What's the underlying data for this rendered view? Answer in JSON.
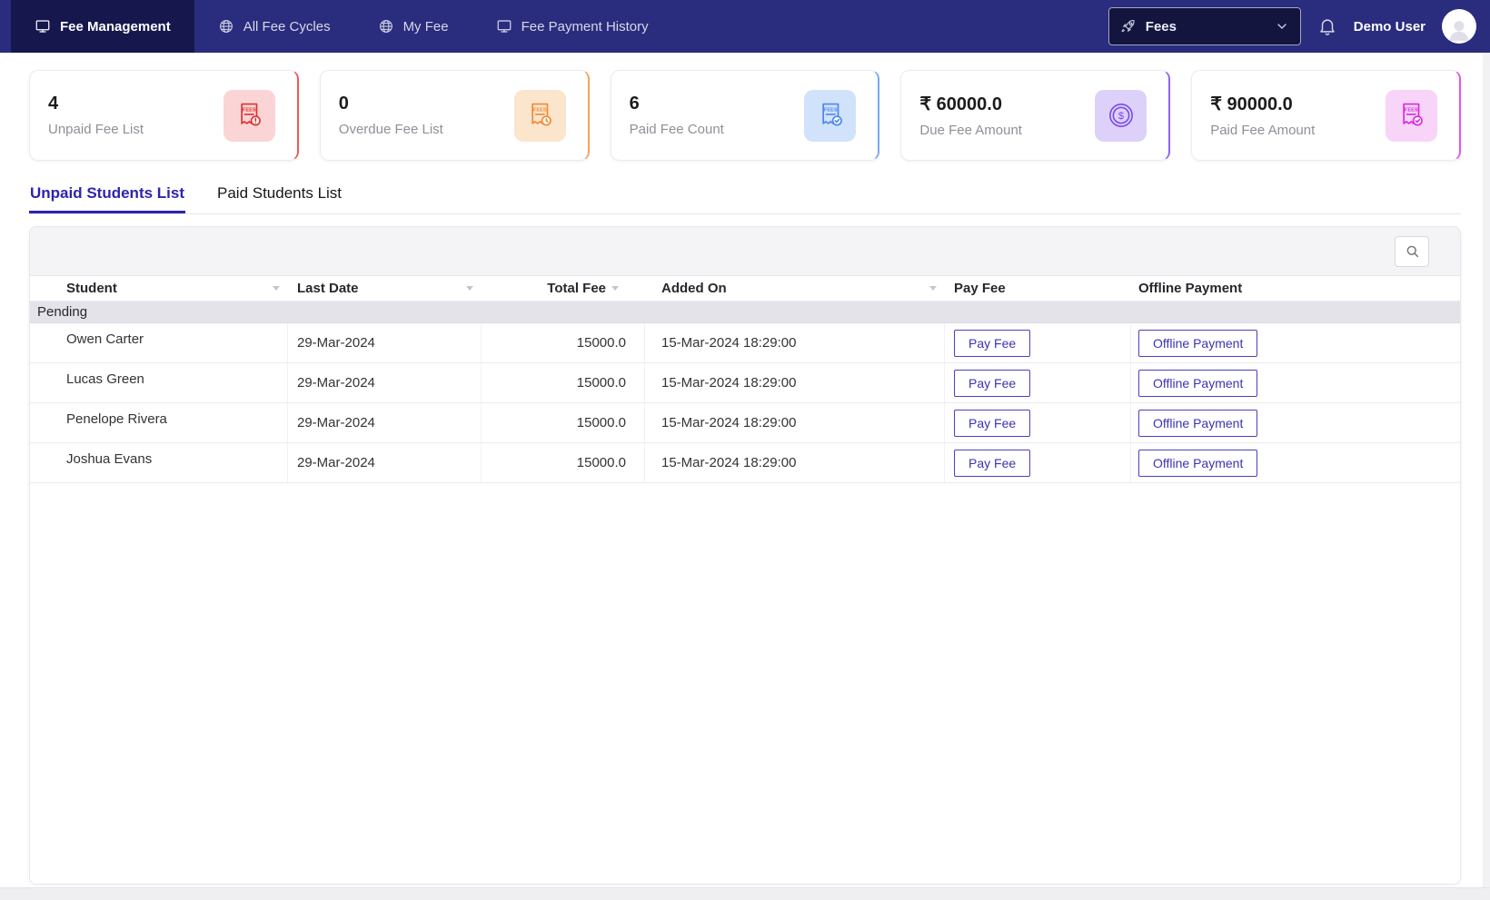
{
  "nav": {
    "items": [
      {
        "label": "Fee Management",
        "icon": "monitor-icon",
        "active": true
      },
      {
        "label": "All Fee Cycles",
        "icon": "globe-icon",
        "active": false
      },
      {
        "label": "My Fee",
        "icon": "globe-icon",
        "active": false
      },
      {
        "label": "Fee Payment History",
        "icon": "monitor-icon",
        "active": false
      }
    ],
    "module_select": {
      "value": "Fees",
      "icon": "rocket-icon"
    },
    "user_name": "Demo User"
  },
  "cards": [
    {
      "value": "4",
      "label": "Unpaid Fee List",
      "accent": "#f15757",
      "icon_bg": "#fbd5d6",
      "icon_color": "#e03131",
      "icon": "fees-receipt-alert-icon"
    },
    {
      "value": "0",
      "label": "Overdue Fee List",
      "accent": "#f7a35c",
      "icon_bg": "#fce5cd",
      "icon_color": "#ef8b33",
      "icon": "fees-receipt-clock-icon"
    },
    {
      "value": "6",
      "label": "Paid Fee Count",
      "accent": "#79a9f7",
      "icon_bg": "#d1e2fb",
      "icon_color": "#4b87f2",
      "icon": "fees-receipt-check-icon"
    },
    {
      "value": "₹ 60000.0",
      "label": "Due Fee Amount",
      "accent": "#9163f5",
      "icon_bg": "#ddd1fa",
      "icon_color": "#7a46ef",
      "icon": "dollar-coin-icon"
    },
    {
      "value": "₹ 90000.0",
      "label": "Paid Fee Amount",
      "accent": "#e355ec",
      "icon_bg": "#f8d4f8",
      "icon_color": "#d92ae0",
      "icon": "fees-receipt-check-icon"
    }
  ],
  "tabs": [
    {
      "label": "Unpaid Students List",
      "active": true
    },
    {
      "label": "Paid Students List",
      "active": false
    }
  ],
  "table": {
    "columns": [
      "Student",
      "Last Date",
      "Total Fee",
      "Added On",
      "Pay Fee",
      "Offline Payment"
    ],
    "group_label": "Pending",
    "pay_fee_label": "Pay Fee",
    "offline_payment_label": "Offline Payment",
    "rows": [
      {
        "student": "Owen Carter",
        "last_date": "29-Mar-2024",
        "total_fee": "15000.0",
        "added_on": "15-Mar-2024 18:29:00"
      },
      {
        "student": "Lucas Green",
        "last_date": "29-Mar-2024",
        "total_fee": "15000.0",
        "added_on": "15-Mar-2024 18:29:00"
      },
      {
        "student": "Penelope Rivera",
        "last_date": "29-Mar-2024",
        "total_fee": "15000.0",
        "added_on": "15-Mar-2024 18:29:00"
      },
      {
        "student": "Joshua Evans",
        "last_date": "29-Mar-2024",
        "total_fee": "15000.0",
        "added_on": "15-Mar-2024 18:29:00"
      }
    ]
  }
}
